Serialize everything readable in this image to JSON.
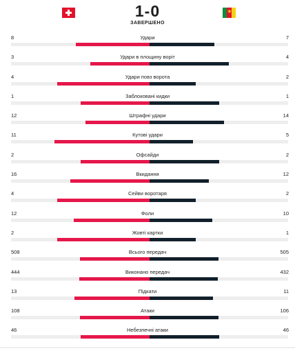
{
  "match": {
    "score": "1-0",
    "status": "ЗАВЕРШЕНО",
    "home_flag": "switzerland-flag",
    "away_flag": "cameroon-flag"
  },
  "colors": {
    "home_bar": "#e5174a",
    "away_bar": "#12202b",
    "track": "#eeeeee"
  },
  "stats": [
    {
      "label": "Удари",
      "home": "8",
      "away": "7"
    },
    {
      "label": "Удари в площину воріт",
      "home": "3",
      "away": "4"
    },
    {
      "label": "Удари повз ворота",
      "home": "4",
      "away": "2"
    },
    {
      "label": "Заблоковані кидки",
      "home": "1",
      "away": "1"
    },
    {
      "label": "Штрафні удари",
      "home": "12",
      "away": "14"
    },
    {
      "label": "Кутові удари",
      "home": "11",
      "away": "5"
    },
    {
      "label": "Офсайди",
      "home": "2",
      "away": "2"
    },
    {
      "label": "Вкидання",
      "home": "16",
      "away": "12"
    },
    {
      "label": "Сейви воротаря",
      "home": "4",
      "away": "2"
    },
    {
      "label": "Фоли",
      "home": "12",
      "away": "10"
    },
    {
      "label": "Жовті картки",
      "home": "2",
      "away": "1"
    },
    {
      "label": "Всього передач",
      "home": "508",
      "away": "505"
    },
    {
      "label": "Виконано передач",
      "home": "444",
      "away": "432"
    },
    {
      "label": "Підкати",
      "home": "13",
      "away": "11"
    },
    {
      "label": "Атаки",
      "home": "108",
      "away": "106"
    },
    {
      "label": "Небезпечні атаки",
      "home": "46",
      "away": "46"
    }
  ]
}
